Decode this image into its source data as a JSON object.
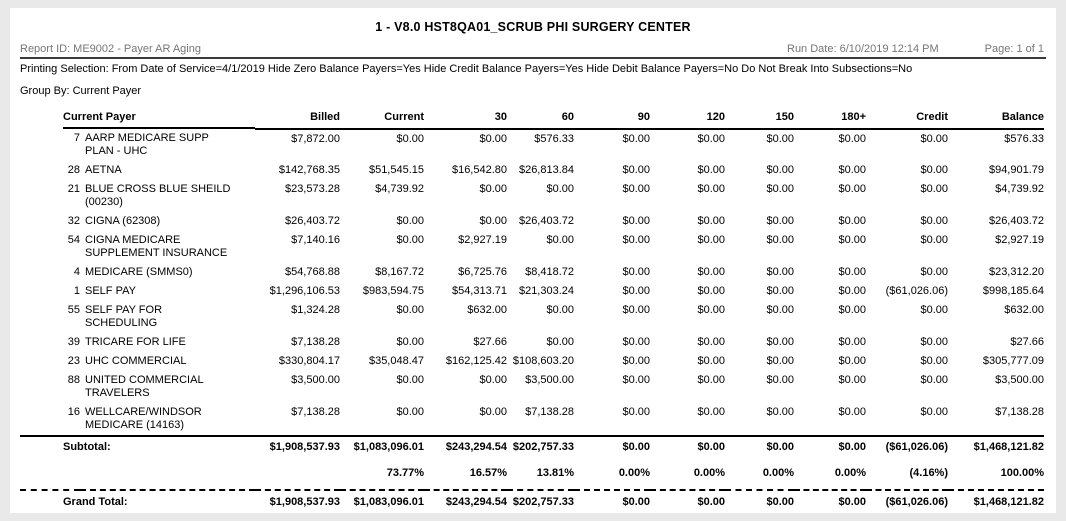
{
  "report": {
    "title": "1 - V8.0 HST8QA01_SCRUB PHI SURGERY CENTER",
    "report_id": "Report ID: ME9002 - Payer AR Aging",
    "run_date": "Run Date: 6/10/2019 12:14 PM",
    "page": "Page: 1 of 1",
    "printing_selection": "Printing Selection: From Date of Service=4/1/2019 Hide Zero Balance Payers=Yes Hide Credit Balance Payers=Yes Hide Debit Balance Payers=No Do Not Break Into Subsections=No",
    "group_by": "Group By: Current Payer"
  },
  "table": {
    "columns": [
      "Current Payer",
      "Billed",
      "Current",
      "30",
      "60",
      "90",
      "120",
      "150",
      "180+",
      "Credit",
      "Balance"
    ],
    "rows": [
      {
        "id": "7",
        "payer": "AARP MEDICARE SUPP\nPLAN - UHC",
        "values": [
          "$7,872.00",
          "$0.00",
          "$0.00",
          "$576.33",
          "$0.00",
          "$0.00",
          "$0.00",
          "$0.00",
          "$0.00",
          "$576.33"
        ]
      },
      {
        "id": "28",
        "payer": "AETNA",
        "values": [
          "$142,768.35",
          "$51,545.15",
          "$16,542.80",
          "$26,813.84",
          "$0.00",
          "$0.00",
          "$0.00",
          "$0.00",
          "$0.00",
          "$94,901.79"
        ]
      },
      {
        "id": "21",
        "payer": "BLUE CROSS BLUE SHEILD\n(00230)",
        "values": [
          "$23,573.28",
          "$4,739.92",
          "$0.00",
          "$0.00",
          "$0.00",
          "$0.00",
          "$0.00",
          "$0.00",
          "$0.00",
          "$4,739.92"
        ]
      },
      {
        "id": "32",
        "payer": "CIGNA (62308)",
        "values": [
          "$26,403.72",
          "$0.00",
          "$0.00",
          "$26,403.72",
          "$0.00",
          "$0.00",
          "$0.00",
          "$0.00",
          "$0.00",
          "$26,403.72"
        ]
      },
      {
        "id": "54",
        "payer": "CIGNA MEDICARE\nSUPPLEMENT INSURANCE",
        "values": [
          "$7,140.16",
          "$0.00",
          "$2,927.19",
          "$0.00",
          "$0.00",
          "$0.00",
          "$0.00",
          "$0.00",
          "$0.00",
          "$2,927.19"
        ]
      },
      {
        "id": "4",
        "payer": "MEDICARE (SMMS0)",
        "values": [
          "$54,768.88",
          "$8,167.72",
          "$6,725.76",
          "$8,418.72",
          "$0.00",
          "$0.00",
          "$0.00",
          "$0.00",
          "$0.00",
          "$23,312.20"
        ]
      },
      {
        "id": "1",
        "payer": "SELF PAY",
        "values": [
          "$1,296,106.53",
          "$983,594.75",
          "$54,313.71",
          "$21,303.24",
          "$0.00",
          "$0.00",
          "$0.00",
          "$0.00",
          "($61,026.06)",
          "$998,185.64"
        ]
      },
      {
        "id": "55",
        "payer": "SELF PAY FOR\nSCHEDULING",
        "values": [
          "$1,324.28",
          "$0.00",
          "$632.00",
          "$0.00",
          "$0.00",
          "$0.00",
          "$0.00",
          "$0.00",
          "$0.00",
          "$632.00"
        ]
      },
      {
        "id": "39",
        "payer": "TRICARE FOR LIFE",
        "values": [
          "$7,138.28",
          "$0.00",
          "$27.66",
          "$0.00",
          "$0.00",
          "$0.00",
          "$0.00",
          "$0.00",
          "$0.00",
          "$27.66"
        ]
      },
      {
        "id": "23",
        "payer": "UHC COMMERCIAL",
        "values": [
          "$330,804.17",
          "$35,048.47",
          "$162,125.42",
          "$108,603.20",
          "$0.00",
          "$0.00",
          "$0.00",
          "$0.00",
          "$0.00",
          "$305,777.09"
        ]
      },
      {
        "id": "88",
        "payer": "UNITED COMMERCIAL\nTRAVELERS",
        "values": [
          "$3,500.00",
          "$0.00",
          "$0.00",
          "$3,500.00",
          "$0.00",
          "$0.00",
          "$0.00",
          "$0.00",
          "$0.00",
          "$3,500.00"
        ]
      },
      {
        "id": "16",
        "payer": "WELLCARE/WINDSOR\nMEDICARE (14163)",
        "values": [
          "$7,138.28",
          "$0.00",
          "$0.00",
          "$7,138.28",
          "$0.00",
          "$0.00",
          "$0.00",
          "$0.00",
          "$0.00",
          "$7,138.28"
        ]
      }
    ],
    "subtotal": {
      "label": "Subtotal:",
      "values": [
        "$1,908,537.93",
        "$1,083,096.01",
        "$243,294.54",
        "$202,757.33",
        "$0.00",
        "$0.00",
        "$0.00",
        "$0.00",
        "($61,026.06)",
        "$1,468,121.82"
      ],
      "percents": [
        "",
        "73.77%",
        "16.57%",
        "13.81%",
        "0.00%",
        "0.00%",
        "0.00%",
        "0.00%",
        "(4.16%)",
        "100.00%"
      ]
    },
    "grand_total": {
      "label": "Grand Total:",
      "values": [
        "$1,908,537.93",
        "$1,083,096.01",
        "$243,294.54",
        "$202,757.33",
        "$0.00",
        "$0.00",
        "$0.00",
        "$0.00",
        "($61,026.06)",
        "$1,468,121.82"
      ],
      "percents": [
        "",
        "73.77%",
        "16.57%",
        "13.81%",
        "0.00%",
        "0.00%",
        "0.00%",
        "0.00%",
        "(4.16%)",
        "100.00%"
      ]
    }
  },
  "colors": {
    "meta_text": "#767676",
    "text": "#000000",
    "page_background": "#ffffff",
    "surround_background": "#e9e9e9"
  }
}
